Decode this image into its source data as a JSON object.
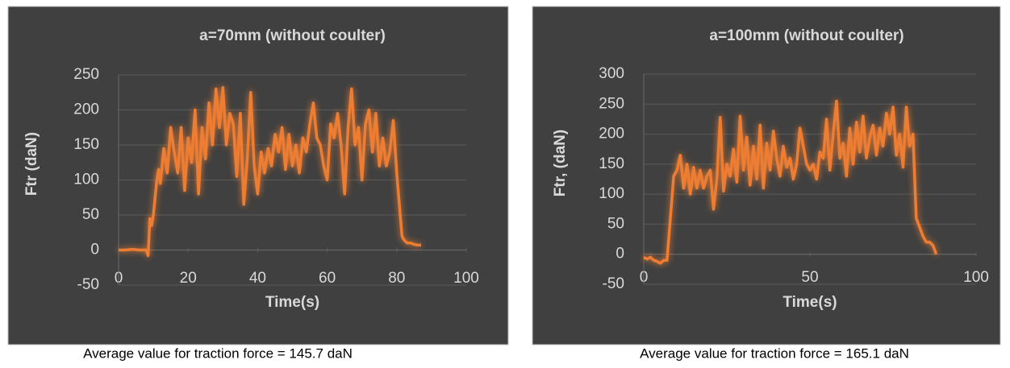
{
  "chart_data": [
    {
      "type": "line",
      "title": "a=70mm (without coulter)",
      "xlabel": "Time(s)",
      "ylabel": "Ftr (daN)",
      "caption": "Average value for traction force = 145.7 daN",
      "xlim": [
        0,
        100
      ],
      "xticks": [
        0,
        20,
        40,
        60,
        80,
        100
      ],
      "ylim": [
        -50,
        250
      ],
      "yticks": [
        -50,
        0,
        50,
        100,
        150,
        200,
        250
      ],
      "grid": true,
      "series": [
        {
          "name": null,
          "color": "#ed7d31",
          "x": [
            0,
            2,
            4,
            6,
            8,
            8.5,
            9,
            9.5,
            10,
            11,
            11.5,
            12,
            13,
            14,
            15,
            16,
            17,
            18,
            19,
            20,
            21,
            22,
            23,
            24,
            25,
            26,
            27,
            28,
            29,
            30,
            31,
            32,
            33,
            34,
            35,
            36,
            37,
            38,
            39,
            40,
            41,
            42,
            43,
            44,
            45,
            46,
            47,
            48,
            49,
            50,
            51,
            52,
            53,
            54,
            55,
            56,
            57,
            58,
            59,
            60,
            61,
            62,
            63,
            64,
            65,
            66,
            67,
            68,
            69,
            70,
            71,
            72,
            73,
            74,
            75,
            76,
            77,
            78,
            79,
            80,
            81,
            81.5,
            82,
            83,
            84,
            85,
            86,
            87
          ],
          "values": [
            0,
            0,
            1,
            0,
            0,
            -8,
            45,
            35,
            50,
            100,
            115,
            95,
            145,
            110,
            175,
            140,
            110,
            175,
            85,
            160,
            125,
            200,
            80,
            175,
            130,
            210,
            150,
            230,
            175,
            232,
            150,
            195,
            180,
            105,
            195,
            65,
            130,
            225,
            120,
            80,
            140,
            110,
            145,
            120,
            165,
            140,
            175,
            115,
            165,
            120,
            150,
            110,
            160,
            140,
            180,
            210,
            160,
            150,
            120,
            100,
            180,
            160,
            195,
            150,
            80,
            175,
            230,
            150,
            175,
            100,
            180,
            200,
            140,
            195,
            120,
            160,
            120,
            140,
            185,
            110,
            50,
            20,
            15,
            10,
            10,
            8,
            7,
            7
          ]
        }
      ]
    },
    {
      "type": "line",
      "title": "a=100mm (without coulter)",
      "xlabel": "Time(s)",
      "ylabel": "Ftr, (daN)",
      "caption": "Average value for traction force = 165.1 daN",
      "xlim": [
        0,
        100
      ],
      "xticks": [
        0,
        50,
        100
      ],
      "ylim": [
        -50,
        300
      ],
      "yticks": [
        -50,
        0,
        50,
        100,
        150,
        200,
        250,
        300
      ],
      "grid": true,
      "series": [
        {
          "name": null,
          "color": "#ed7d31",
          "x": [
            0,
            1,
            2,
            3,
            4,
            5,
            6,
            7,
            8,
            9,
            10,
            11,
            12,
            13,
            14,
            15,
            16,
            17,
            18,
            19,
            20,
            21,
            22,
            23,
            24,
            25,
            26,
            27,
            28,
            29,
            30,
            31,
            32,
            33,
            34,
            35,
            36,
            37,
            38,
            39,
            40,
            41,
            42,
            43,
            44,
            45,
            46,
            47,
            48,
            49,
            50,
            51,
            52,
            53,
            54,
            55,
            56,
            57,
            58,
            59,
            60,
            61,
            62,
            63,
            64,
            65,
            66,
            67,
            68,
            69,
            70,
            71,
            72,
            73,
            74,
            75,
            76,
            77,
            78,
            79,
            80,
            81,
            82,
            83,
            84,
            85,
            86,
            87,
            88
          ],
          "values": [
            -5,
            -8,
            -5,
            -10,
            -12,
            -15,
            -10,
            -10,
            60,
            130,
            140,
            165,
            110,
            150,
            100,
            145,
            110,
            140,
            110,
            130,
            140,
            75,
            125,
            228,
            105,
            150,
            130,
            175,
            120,
            230,
            140,
            195,
            115,
            180,
            125,
            215,
            110,
            185,
            140,
            205,
            160,
            130,
            180,
            145,
            160,
            125,
            150,
            210,
            180,
            150,
            140,
            150,
            125,
            170,
            160,
            225,
            140,
            200,
            255,
            160,
            185,
            130,
            210,
            150,
            220,
            170,
            230,
            160,
            195,
            215,
            165,
            210,
            180,
            235,
            200,
            245,
            165,
            200,
            145,
            245,
            180,
            200,
            60,
            45,
            30,
            20,
            20,
            15,
            0
          ]
        }
      ]
    }
  ]
}
